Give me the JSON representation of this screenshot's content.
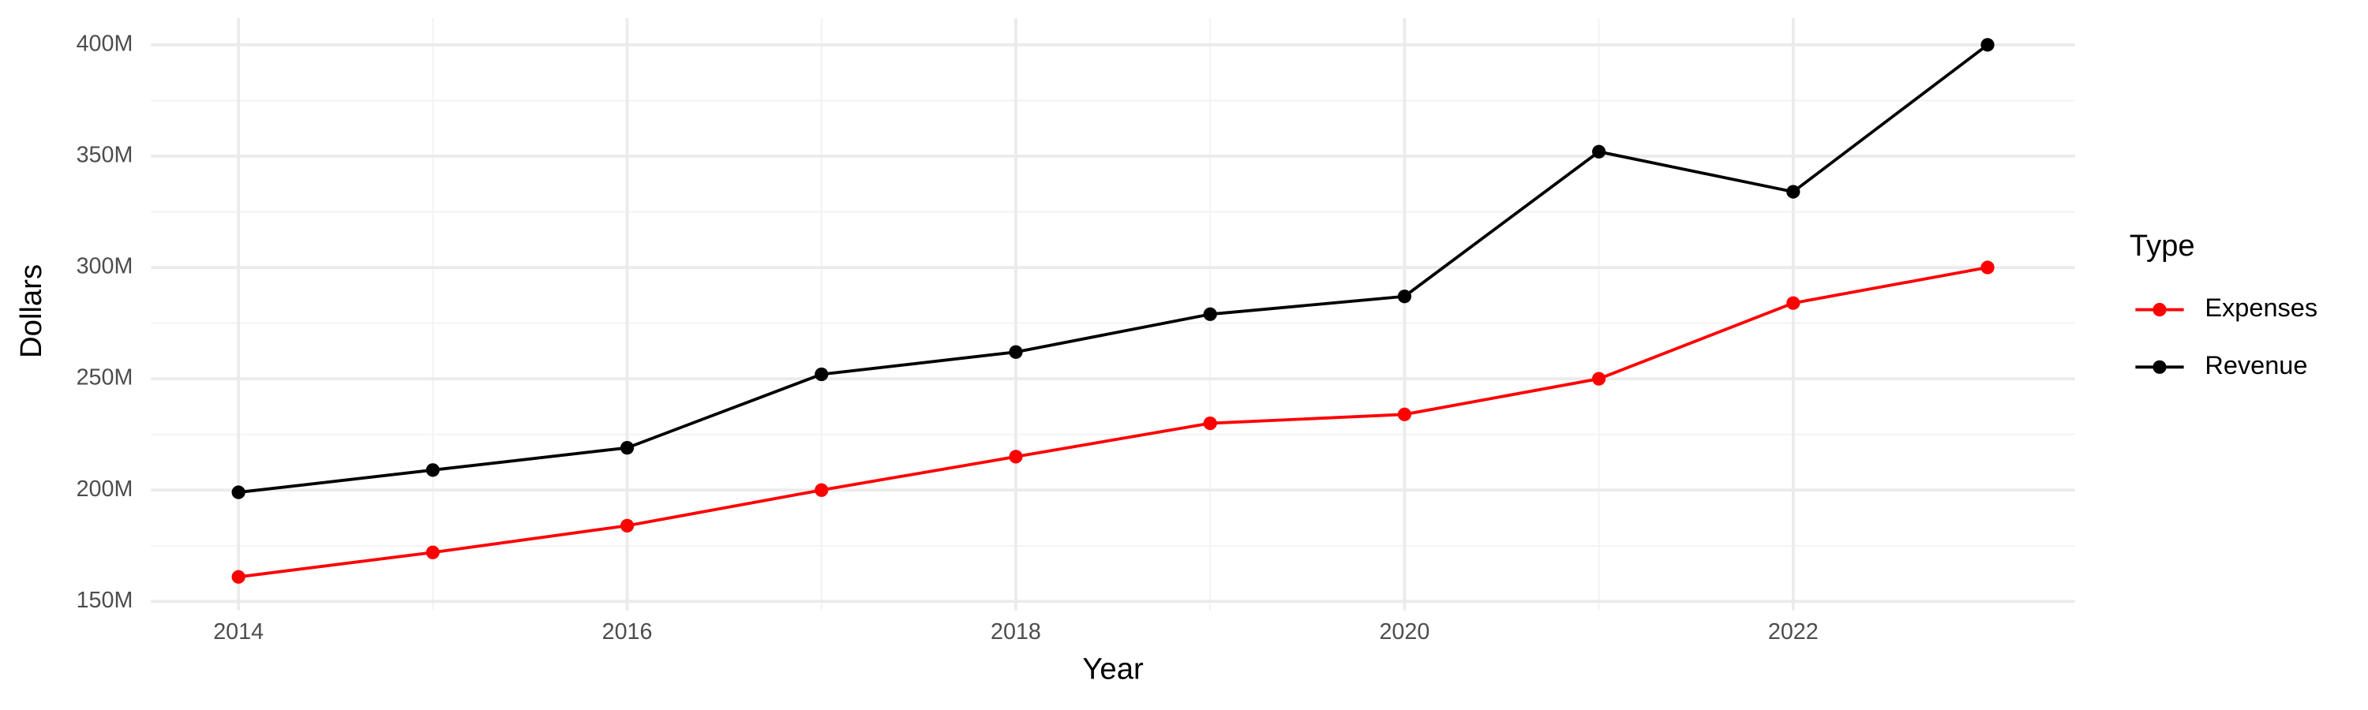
{
  "chart_data": {
    "type": "line",
    "x_label": "Year",
    "y_label": "Dollars",
    "x": [
      2014,
      2015,
      2016,
      2017,
      2018,
      2019,
      2020,
      2021,
      2022,
      2023
    ],
    "series": [
      {
        "name": "Expenses",
        "color": "#ff0000",
        "values": [
          161000000,
          172000000,
          184000000,
          200000000,
          215000000,
          230000000,
          234000000,
          250000000,
          284000000,
          300000000
        ]
      },
      {
        "name": "Revenue",
        "color": "#000000",
        "values": [
          199000000,
          209000000,
          219000000,
          252000000,
          262000000,
          279000000,
          287000000,
          352000000,
          334000000,
          400000000
        ]
      }
    ],
    "xlim": [
      2013.55,
      2023.45
    ],
    "xticks": [
      2014,
      2016,
      2018,
      2020,
      2022
    ],
    "ylim": [
      146000000,
      412000000
    ],
    "yticks": [
      {
        "value": 150000000,
        "label": "150M"
      },
      {
        "value": 200000000,
        "label": "200M"
      },
      {
        "value": 250000000,
        "label": "250M"
      },
      {
        "value": 300000000,
        "label": "300M"
      },
      {
        "value": 350000000,
        "label": "350M"
      },
      {
        "value": 400000000,
        "label": "400M"
      }
    ],
    "grid": true,
    "legend_title": "Type",
    "legend_position": "right"
  }
}
